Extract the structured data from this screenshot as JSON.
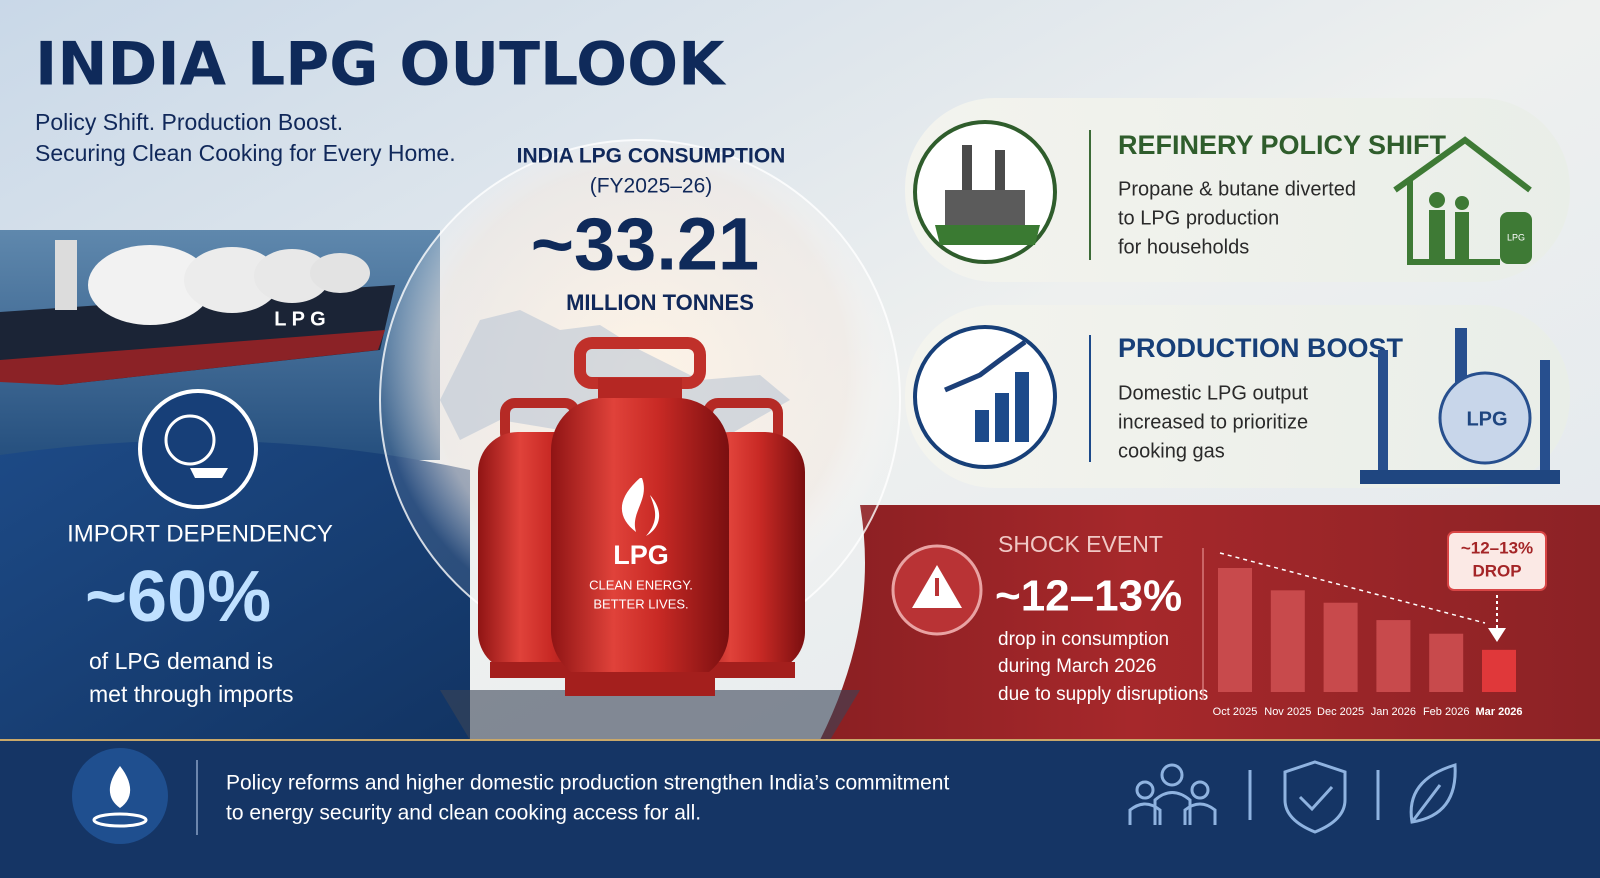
{
  "header": {
    "title": "INDIA LPG OUTLOOK",
    "subtitle_lines": [
      "Policy Shift. Production Boost.",
      "Securing Clean Cooking for Every Home."
    ]
  },
  "consumption": {
    "label_lines": [
      "INDIA LPG CONSUMPTION",
      "(FY2025–26)"
    ],
    "value": "~33.21",
    "unit": "MILLION TONNES"
  },
  "ship_label": "L P G",
  "cylinder": {
    "label": "LPG",
    "tagline_lines": [
      "CLEAN ENERGY.",
      "BETTER LIVES."
    ]
  },
  "import": {
    "title": "IMPORT DEPENDENCY",
    "value": "~60%",
    "text_lines": [
      "of LPG demand is",
      "met through imports"
    ]
  },
  "cards": [
    {
      "title": "REFINERY POLICY SHIFT",
      "text_lines": [
        "Propane & butane diverted",
        "to LPG production",
        "for households"
      ],
      "icon_label": "LPG"
    },
    {
      "title": "PRODUCTION BOOST",
      "text_lines": [
        "Domestic LPG output",
        "increased to prioritize",
        "cooking gas"
      ],
      "icon_label": "LPG"
    }
  ],
  "shock": {
    "title": "SHOCK EVENT",
    "value": "~12–13%",
    "text_lines": [
      "drop in consumption",
      "during March 2026",
      "due to supply disruptions"
    ],
    "callout_lines": [
      "~12–13%",
      "DROP"
    ],
    "chart": {
      "type": "bar",
      "categories": [
        "Oct 2025",
        "Nov 2025",
        "Dec 2025",
        "Jan 2026",
        "Feb 2026",
        "Mar 2026"
      ],
      "values": [
        100,
        82,
        72,
        58,
        47,
        34
      ],
      "color": "#c84a4c",
      "highlight_color": "#e0383a"
    }
  },
  "footer": {
    "text_lines": [
      "Policy reforms and higher domestic production strengthen India’s commitment",
      "to energy security and clean cooking access for all."
    ]
  }
}
